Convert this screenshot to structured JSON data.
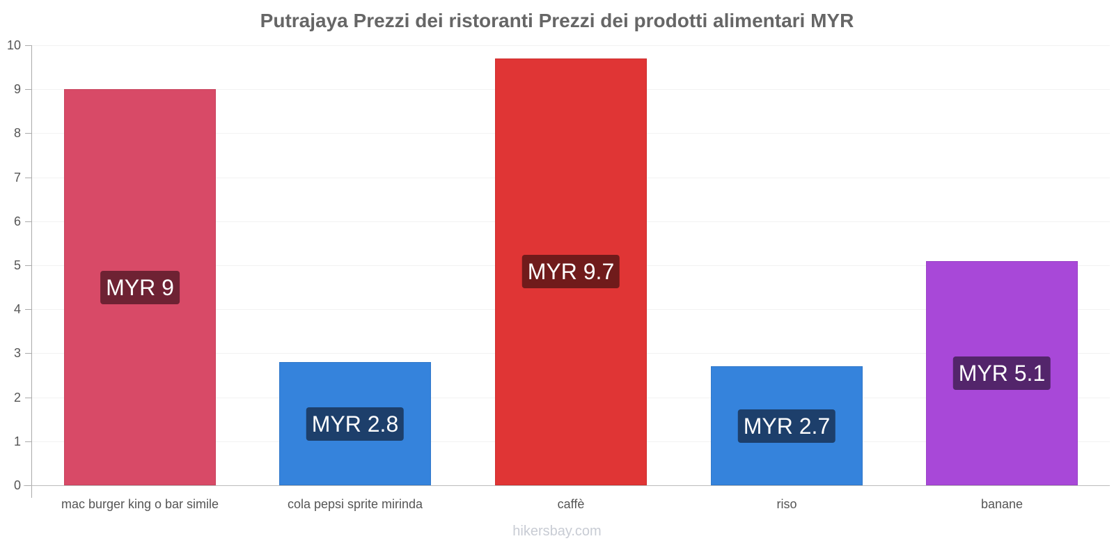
{
  "chart_data": {
    "type": "bar",
    "title": "Putrajaya Prezzi dei ristoranti Prezzi dei prodotti alimentari MYR",
    "xlabel": "",
    "ylabel": "",
    "ylim": [
      0,
      10
    ],
    "yticks": [
      "0",
      "1",
      "2",
      "3",
      "4",
      "5",
      "6",
      "7",
      "8",
      "9",
      "10"
    ],
    "grid": true,
    "legend": "none",
    "categories": [
      "mac burger king o bar simile",
      "cola pepsi sprite mirinda",
      "caffè",
      "riso",
      "banane"
    ],
    "values": [
      9,
      2.8,
      9.7,
      2.7,
      5.1
    ],
    "data_labels": [
      "MYR 9",
      "MYR 2.8",
      "MYR 9.7",
      "MYR 2.7",
      "MYR 5.1"
    ],
    "bar_colors": [
      "#d84a67",
      "#3583dc",
      "#e03535",
      "#3583dc",
      "#a848d8"
    ],
    "label_colors": [
      "#6e2233",
      "#1d3f6b",
      "#701b1b",
      "#1d3f6b",
      "#53256b"
    ]
  },
  "watermark": "hikersbay.com"
}
